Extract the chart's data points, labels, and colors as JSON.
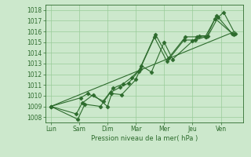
{
  "background_color": "#cce8cc",
  "plot_bg_color": "#cce8cc",
  "grid_color": "#99cc99",
  "line_color": "#2d6b2d",
  "x_labels": [
    "Lun",
    "Sam",
    "Dim",
    "Mar",
    "Mer",
    "Jeu",
    "Ven"
  ],
  "x_positions": [
    0,
    1,
    2,
    3,
    4,
    5,
    6
  ],
  "xlabel": "Pression niveau de la mer( hPa )",
  "ylim": [
    1007.5,
    1018.5
  ],
  "yticks": [
    1008,
    1009,
    1010,
    1011,
    1012,
    1013,
    1014,
    1015,
    1016,
    1017,
    1018
  ],
  "series": [
    {
      "x": [
        0.0,
        0.9,
        1.1,
        1.5,
        2.0,
        2.15,
        2.5,
        3.0,
        3.2,
        3.55,
        4.0,
        4.3,
        5.0,
        5.25,
        5.55,
        5.9,
        6.1,
        6.5
      ],
      "y": [
        1009.0,
        1008.3,
        1009.3,
        1010.1,
        1009.0,
        1010.2,
        1010.1,
        1011.5,
        1012.8,
        1012.2,
        1015.0,
        1013.4,
        1015.1,
        1015.6,
        1015.6,
        1017.3,
        1017.8,
        1015.8
      ],
      "marker": "D",
      "markersize": 2.5
    },
    {
      "x": [
        0.0,
        1.05,
        1.3,
        1.85,
        2.2,
        2.55,
        2.85,
        3.15,
        3.7,
        4.15,
        4.75,
        5.15,
        5.5,
        5.85,
        6.4
      ],
      "y": [
        1009.0,
        1009.8,
        1010.2,
        1009.5,
        1010.7,
        1011.1,
        1011.7,
        1012.5,
        1015.7,
        1013.5,
        1015.5,
        1015.5,
        1015.5,
        1017.5,
        1015.8
      ],
      "marker": "D",
      "markersize": 2.5
    },
    {
      "x": [
        0.0,
        0.95,
        1.2,
        1.75,
        2.1,
        2.45,
        2.75,
        3.1,
        3.65,
        4.1,
        4.7,
        5.1,
        5.45,
        5.8,
        6.45
      ],
      "y": [
        1009.0,
        1007.8,
        1009.2,
        1009.0,
        1010.3,
        1010.8,
        1011.2,
        1012.3,
        1015.5,
        1013.2,
        1015.2,
        1015.2,
        1015.5,
        1017.2,
        1015.7
      ],
      "marker": "D",
      "markersize": 2.5
    },
    {
      "x": [
        0.0,
        6.5
      ],
      "y": [
        1009.0,
        1016.0
      ],
      "marker": null,
      "markersize": 0
    }
  ]
}
